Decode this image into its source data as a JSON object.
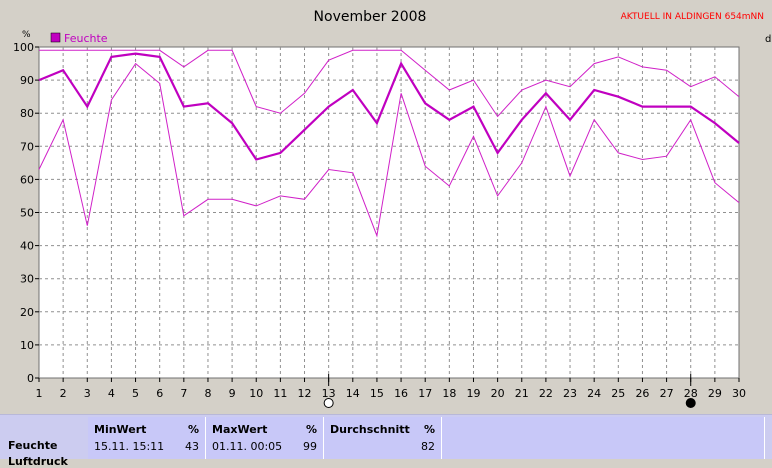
{
  "chart_data": {
    "type": "line",
    "title": "November 2008",
    "corner_label": "AKTUELL IN ALDINGEN 654mNN",
    "unit_label": "%",
    "right_edge_label": "d",
    "legend": {
      "label": "Feuchte",
      "color": "#c000c0",
      "placement": "top-left"
    },
    "x": [
      1,
      2,
      3,
      4,
      5,
      6,
      7,
      8,
      9,
      10,
      11,
      12,
      13,
      14,
      15,
      16,
      17,
      18,
      19,
      20,
      21,
      22,
      23,
      24,
      25,
      26,
      27,
      28,
      29,
      30
    ],
    "ylim": [
      0,
      100
    ],
    "yticks": [
      0,
      10,
      20,
      30,
      40,
      50,
      60,
      70,
      80,
      90,
      100
    ],
    "xlim": [
      1,
      30
    ],
    "grid": true,
    "series": [
      {
        "name": "Feuchte",
        "role": "average",
        "values": [
          90,
          93,
          82,
          97,
          98,
          97,
          82,
          83,
          77,
          66,
          68,
          75,
          82,
          87,
          77,
          95,
          83,
          78,
          82,
          68,
          78,
          86,
          78,
          87,
          85,
          82,
          82,
          82,
          77,
          71
        ]
      },
      {
        "role": "max",
        "values": [
          99,
          99,
          99,
          99,
          99,
          99,
          94,
          99,
          99,
          82,
          80,
          86,
          96,
          99,
          99,
          99,
          93,
          87,
          90,
          79,
          87,
          90,
          88,
          95,
          97,
          94,
          93,
          88,
          91,
          85
        ]
      },
      {
        "role": "min",
        "values": [
          63,
          78,
          46,
          84,
          95,
          89,
          49,
          54,
          54,
          52,
          55,
          54,
          63,
          62,
          43,
          86,
          64,
          58,
          73,
          55,
          65,
          82,
          61,
          78,
          68,
          66,
          67,
          78,
          59,
          53
        ]
      }
    ],
    "moon_markers": [
      {
        "day": 13,
        "phase": "full"
      },
      {
        "day": 28,
        "phase": "new"
      }
    ]
  },
  "stats": {
    "row_label": "Feuchte",
    "row_label2": "Luftdruck",
    "min": {
      "header": "MinWert",
      "unit": "%",
      "datetime": "15.11.  15:11",
      "value": "43"
    },
    "max": {
      "header": "MaxWert",
      "unit": "%",
      "datetime": "01.11.  00:05",
      "value": "99"
    },
    "avg": {
      "header": "Durchschnitt",
      "unit": "%",
      "value": "82"
    }
  }
}
